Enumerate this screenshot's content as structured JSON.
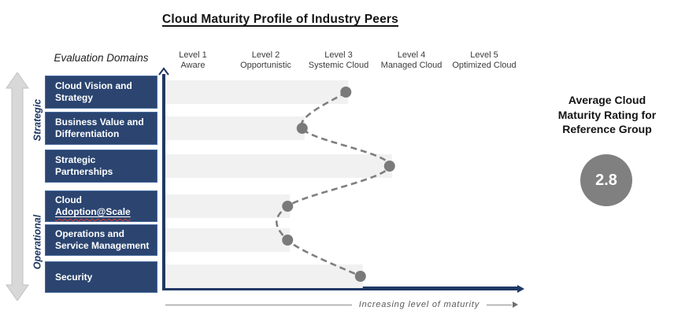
{
  "title": "Cloud Maturity Profile of Industry Peers",
  "header": {
    "evaluation_domains_label": "Evaluation Domains"
  },
  "levels": [
    {
      "line1": "Level 1",
      "line2": "Aware"
    },
    {
      "line1": "Level 2",
      "line2": "Opportunistic"
    },
    {
      "line1": "Level 3",
      "line2": "Systemic Cloud"
    },
    {
      "line1": "Level 4",
      "line2": "Managed Cloud"
    },
    {
      "line1": "Level 5",
      "line2": "Optimized Cloud"
    }
  ],
  "side_arrow": {
    "top_label": "Strategic",
    "bottom_label": "Operational"
  },
  "domains": [
    {
      "label": "Cloud Vision and Strategy",
      "lines": [
        "Cloud Vision and",
        "Strategy"
      ],
      "value": 3.1
    },
    {
      "label": "Business Value and Differentiation",
      "lines": [
        "Business Value and",
        "Differentiation"
      ],
      "value": 2.5
    },
    {
      "label": "Strategic Partnerships",
      "lines": [
        "Strategic",
        "Partnerships"
      ],
      "value": 3.7
    },
    {
      "label": "Cloud Adoption@Scale",
      "lines": [
        "Cloud",
        "Adoption@Scale"
      ],
      "value": 2.3,
      "spellcheck_word": "Adoption@Scale"
    },
    {
      "label": "Operations and Service Management",
      "lines": [
        "Operations and",
        "Service Management"
      ],
      "value": 2.3
    },
    {
      "label": "Security",
      "lines": [
        "Security"
      ],
      "value": 3.3
    }
  ],
  "axis_caption": "Increasing level of maturity",
  "right_panel": {
    "heading_lines": [
      "Average Cloud",
      "Maturity Rating for",
      "Reference Group"
    ],
    "rating": "2.8"
  },
  "chart_data": {
    "type": "scatter",
    "title": "Cloud Maturity Profile of Industry Peers",
    "categories": [
      "Cloud Vision and Strategy",
      "Business Value and Differentiation",
      "Strategic Partnerships",
      "Cloud Adoption@Scale",
      "Operations and Service Management",
      "Security"
    ],
    "values": [
      3.1,
      2.5,
      3.7,
      2.3,
      2.3,
      3.3
    ],
    "x_levels": [
      "Level 1 Aware",
      "Level 2 Opportunistic",
      "Level 3 Systemic Cloud",
      "Level 4 Managed Cloud",
      "Level 5 Optimized Cloud"
    ],
    "xlim": [
      1,
      5
    ],
    "xlabel": "Increasing level of maturity",
    "line_style": "dashed smooth curve through points, gray round markers",
    "bars": "light gray horizontal bars from axis to each data point",
    "legend_position": "none",
    "average_rating": "2.8"
  },
  "colors": {
    "domain_box": "#2B4570",
    "domain_box_border": "#46699E",
    "axis": "#203864",
    "bar": "#F1F1F1",
    "curve": "#7F7F7F",
    "dot": "#7A7A7A",
    "rating_circle": "#808080",
    "side_arrow_fill": "#D8D8D8",
    "side_arrow_stroke": "#C2C2C2",
    "side_arrow_label": "#1F3864",
    "caption_text": "#5A5A5A"
  }
}
